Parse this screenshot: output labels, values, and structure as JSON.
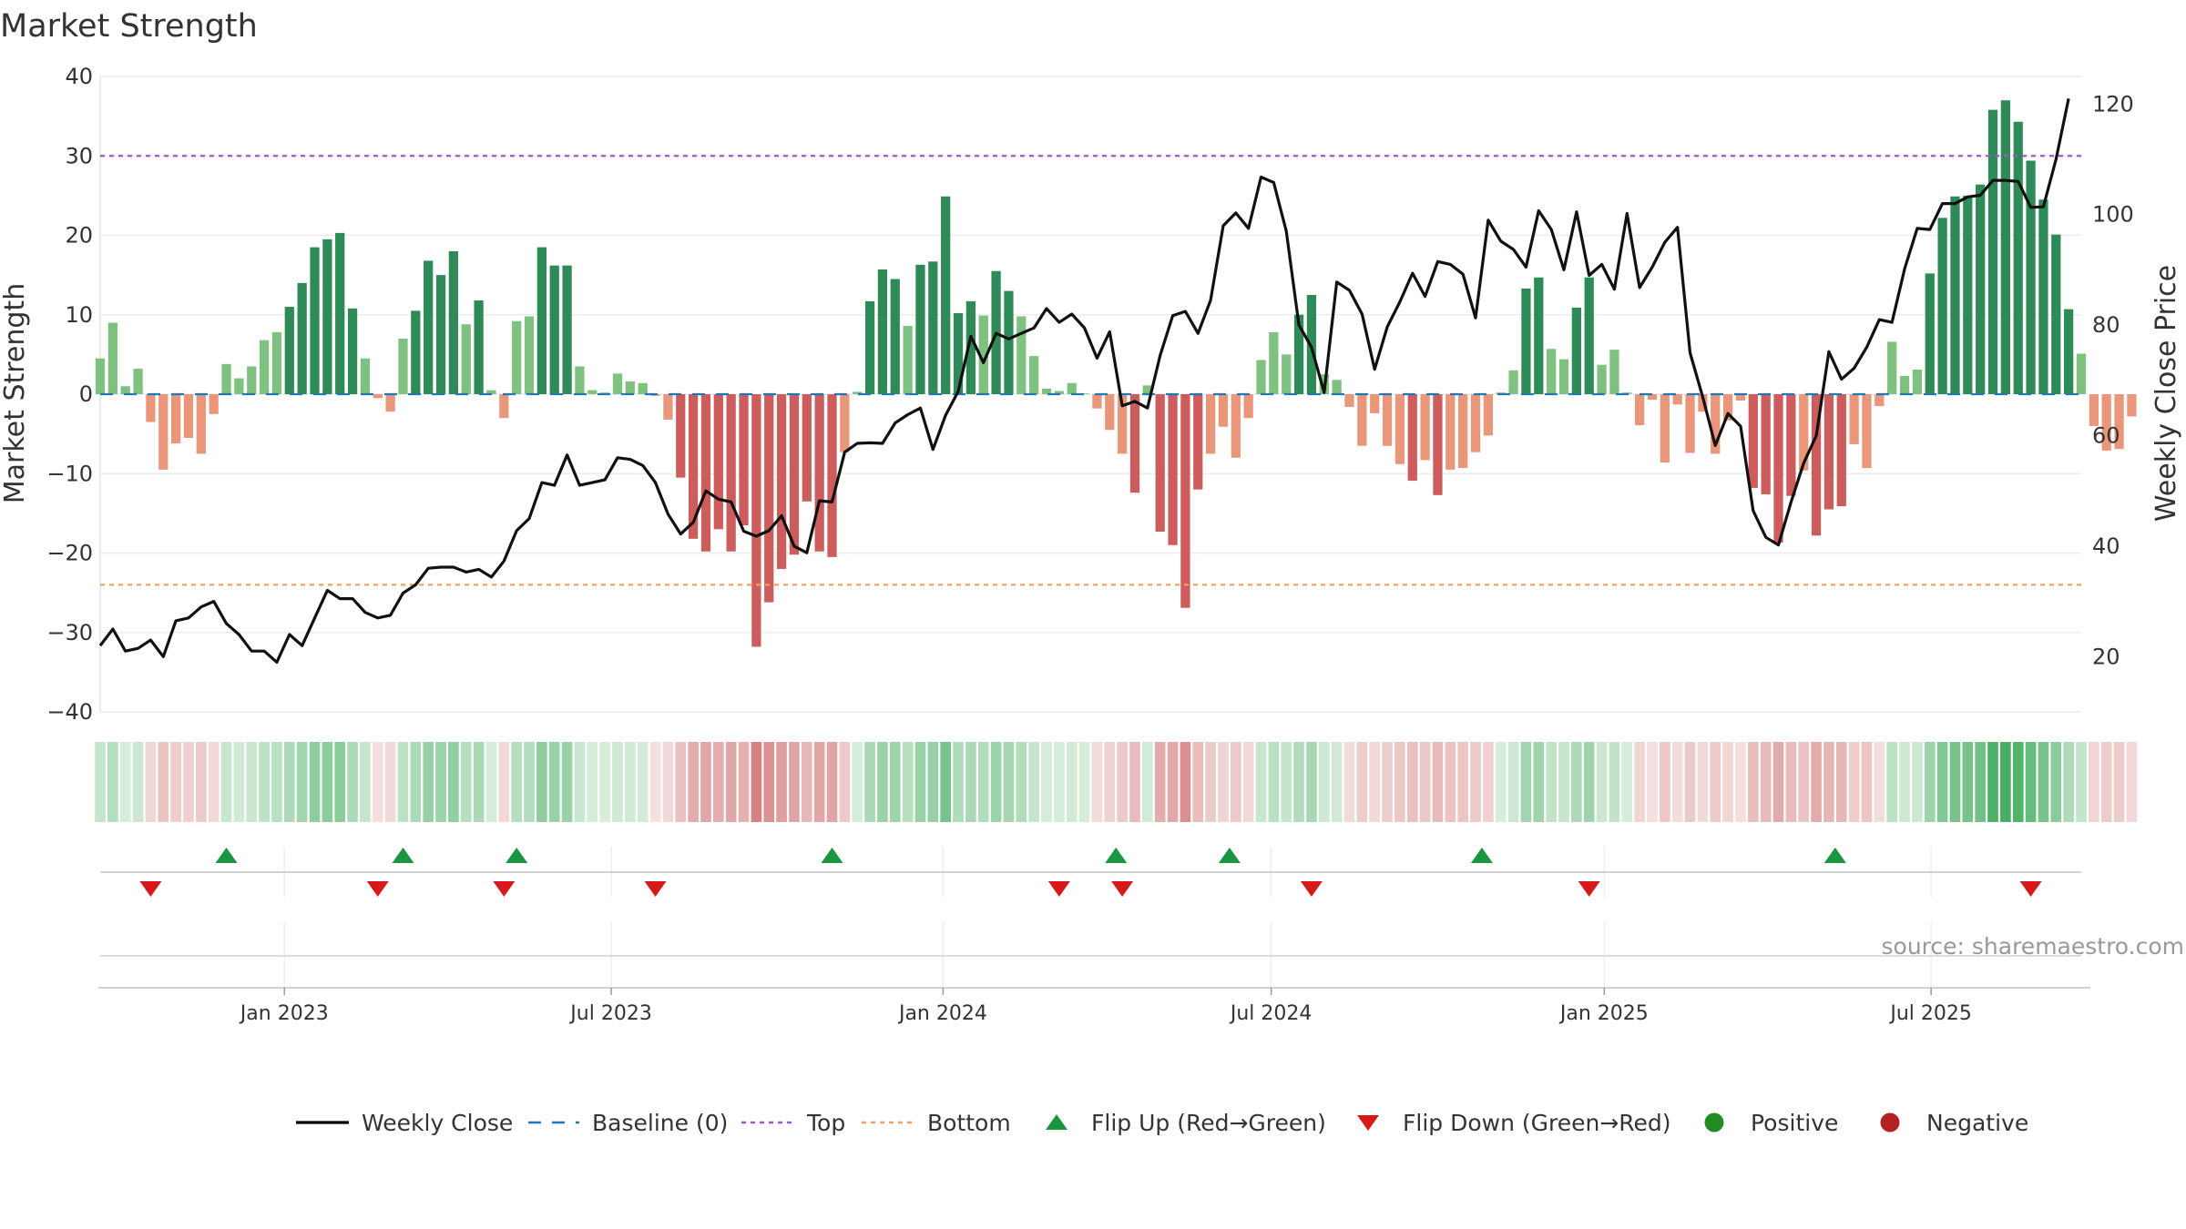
{
  "chart_data": {
    "type": "bar",
    "title": "Market Strength",
    "source": "source: sharemaestro.com",
    "y_left": {
      "label": "Market Strength",
      "range": [
        -40,
        40
      ],
      "ticks": [
        40,
        30,
        20,
        10,
        0,
        -10,
        -20,
        -30,
        -40
      ],
      "tick_labels": [
        "40",
        "30",
        "20",
        "10",
        "0",
        "−10",
        "−20",
        "−30",
        "−40"
      ]
    },
    "y_right": {
      "label": "Weekly Close Price",
      "range": [
        10,
        125
      ],
      "ticks": [
        20,
        40,
        60,
        80,
        100,
        120
      ],
      "tick_labels": [
        "20",
        "40",
        "60",
        "80",
        "100",
        "120"
      ]
    },
    "x_range_weeks": [
      0,
      157
    ],
    "x_ticks": [
      {
        "label": "Jan 2023",
        "week": 14.6
      },
      {
        "label": "Jul 2023",
        "week": 40.5
      },
      {
        "label": "Jan 2024",
        "week": 66.8
      },
      {
        "label": "Jul 2024",
        "week": 92.8
      },
      {
        "label": "Jan 2025",
        "week": 119.2
      },
      {
        "label": "Jul 2025",
        "week": 145.1
      }
    ],
    "thresholds": {
      "top": 30,
      "bottom": -24,
      "baseline": 0
    },
    "strength": [
      4.5,
      9,
      1,
      3.2,
      -3.5,
      -9.5,
      -6.2,
      -5.5,
      -7.5,
      -2.5,
      3.8,
      2,
      3.5,
      6.8,
      7.8,
      11,
      14,
      18.5,
      19.5,
      20.3,
      10.8,
      4.5,
      -0.5,
      -2.2,
      7,
      10.5,
      16.8,
      15,
      18,
      8.8,
      11.8,
      0.5,
      -3,
      9.2,
      9.8,
      18.5,
      16.2,
      16.2,
      3.5,
      0.5,
      0.2,
      2.6,
      1.6,
      1.4,
      -0.2,
      -3.2,
      -10.5,
      -18.2,
      -19.8,
      -17,
      -19.8,
      -16.5,
      -31.8,
      -26.2,
      -22,
      -20.2,
      -13.5,
      -19.8,
      -20.5,
      -7.3,
      0.3,
      11.7,
      15.7,
      14.5,
      8.6,
      16.3,
      16.7,
      24.9,
      10.2,
      11.7,
      9.9,
      15.5,
      13,
      9.8,
      4.8,
      0.7,
      0.4,
      1.4,
      0.1,
      -1.8,
      -4.5,
      -7.5,
      -12.4,
      1.1,
      -17.3,
      -19,
      -26.9,
      -12,
      -7.5,
      -4.1,
      -8,
      -3,
      4.3,
      7.8,
      5,
      10,
      12.5,
      2.5,
      1.8,
      -1.6,
      -6.5,
      -2.4,
      -6.5,
      -8.8,
      -10.9,
      -8.3,
      -12.7,
      -9.5,
      -9.3,
      -7.3,
      -5.2,
      0.2,
      3,
      13.3,
      14.7,
      5.7,
      4.4,
      10.9,
      14.7,
      3.7,
      5.6,
      0.2,
      -3.9,
      -0.7,
      -8.6,
      -1.3,
      -7.4,
      -2.2,
      -7.5,
      -3.3,
      -0.8,
      -11.8,
      -12.6,
      -18.7,
      -12.8,
      -9.6,
      -17.8,
      -14.5,
      -14.1,
      -6.3,
      -9.3,
      -1.5,
      6.6,
      2.3,
      3.1,
      15.2,
      22.2,
      24.9,
      25,
      26.4,
      35.8,
      37,
      34.3,
      29.4,
      24.5,
      20.1,
      10.7,
      5.1,
      -4,
      -7.1,
      -6.9,
      -2.8
    ],
    "strength_strong_threshold": 10,
    "weekly_close": [
      22,
      25,
      21,
      21.5,
      23,
      20,
      26.5,
      27,
      29,
      30,
      26,
      24,
      21,
      21,
      19,
      24,
      22,
      27,
      32,
      30.5,
      30.5,
      28,
      27,
      27.5,
      31.5,
      33,
      36,
      36.2,
      36.2,
      35.3,
      35.8,
      34.4,
      37.3,
      42.8,
      45,
      51.5,
      51,
      56.5,
      51,
      51.5,
      52,
      56,
      55.7,
      54.6,
      51.5,
      45.8,
      42.2,
      44.3,
      50,
      48.5,
      48,
      42.7,
      41.8,
      42.8,
      45.5,
      40,
      38.8,
      48.2,
      48,
      57,
      58.6,
      58.7,
      58.6,
      62.3,
      63.8,
      65,
      57.5,
      63.7,
      68,
      78,
      73.2,
      78.5,
      77.5,
      78.5,
      79.5,
      83,
      80.5,
      82,
      79.5,
      74,
      78.8,
      65.4,
      66.2,
      65,
      74.5,
      81.7,
      82.5,
      78.5,
      84.5,
      98,
      100.3,
      97.5,
      106.8,
      105.8,
      97,
      80,
      76,
      67.8,
      87.8,
      86.3,
      82,
      72,
      79.7,
      84.2,
      89.4,
      85.2,
      91.5,
      91,
      89.2,
      81.3,
      99,
      95.2,
      93.7,
      90.5,
      100.7,
      97.3,
      90,
      100.5,
      89,
      91,
      86.5,
      100.2,
      86.8,
      90.5,
      95,
      97.7,
      75,
      67,
      58.2,
      64,
      61.7,
      46.4,
      41.6,
      40.2,
      48,
      55,
      60,
      75.2,
      70.2,
      72.2,
      76,
      81,
      80.5,
      90.2,
      97.5,
      97.3,
      102,
      102,
      103.2,
      103.5,
      106.2,
      106.2,
      106,
      101.3,
      101.4,
      110,
      121
    ],
    "mini_strip_note": "Per-week strength colour bands (green = positive, red = negative, intensity = magnitude)",
    "flips": {
      "up": [
        10,
        24,
        33,
        58,
        80.5,
        89.5,
        109.5,
        137.5
      ],
      "down": [
        4,
        22,
        32,
        44,
        76,
        81,
        96,
        118,
        153
      ]
    },
    "legend": [
      {
        "label": "Weekly Close",
        "kind": "line-solid",
        "color": "#000000"
      },
      {
        "label": "Baseline (0)",
        "kind": "line-dash",
        "color": "#1f77b4"
      },
      {
        "label": "Top",
        "kind": "line-dot",
        "color": "#9b59d0"
      },
      {
        "label": "Bottom",
        "kind": "line-dot",
        "color": "#f0a060"
      },
      {
        "label": "Flip Up (Red→Green)",
        "kind": "triangle-up",
        "color": "#1a9641"
      },
      {
        "label": "Flip Down (Green→Red)",
        "kind": "triangle-down",
        "color": "#d7191c"
      },
      {
        "label": "Positive",
        "kind": "circle",
        "color": "#228b22"
      },
      {
        "label": "Negative",
        "kind": "circle",
        "color": "#b22222"
      }
    ],
    "colors": {
      "strong_positive": "#2e8b57",
      "weak_positive": "#7fc17f",
      "strong_negative": "#cd5c5c",
      "weak_negative": "#e9967a",
      "close_line": "#111111",
      "baseline": "#1f77b4",
      "top": "#9b59d0",
      "bottom": "#f0a060",
      "flip_up": "#1a9641",
      "flip_down": "#d7191c"
    }
  }
}
